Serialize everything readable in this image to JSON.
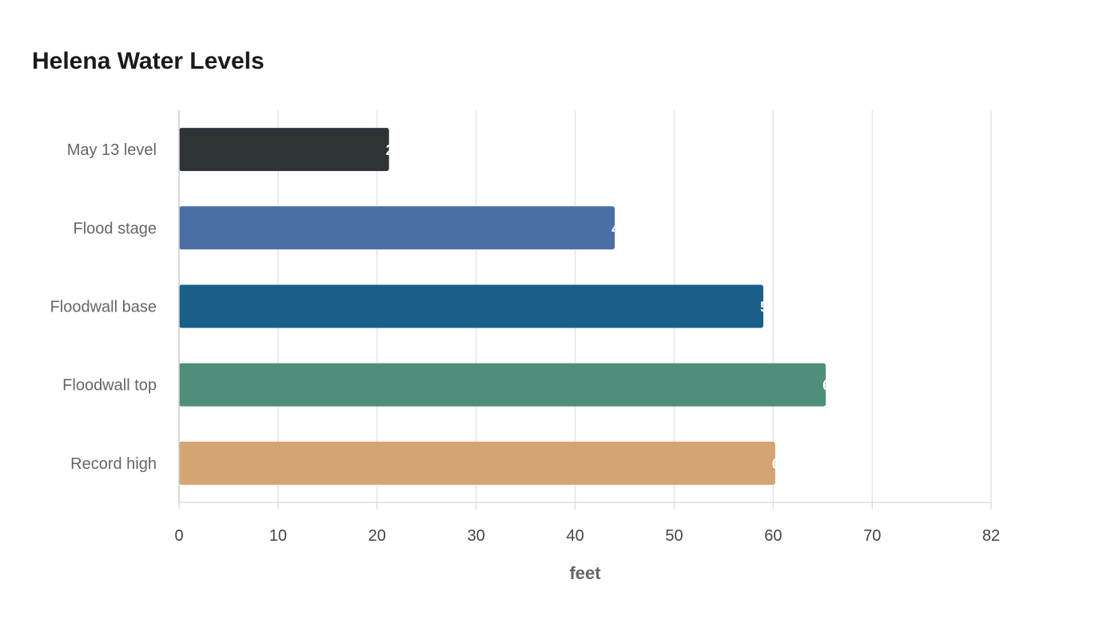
{
  "chart_data": {
    "type": "bar",
    "orientation": "horizontal",
    "title": "Helena Water Levels",
    "xlabel": "feet",
    "categories": [
      "May 13 level",
      "Flood stage",
      "Floodwall base",
      "Floodwall top",
      "Record high"
    ],
    "values": [
      21.2,
      44,
      59,
      65.3,
      60.2
    ],
    "colors": [
      "#2e3336",
      "#4a6fa5",
      "#196089",
      "#4e8e7b",
      "#d3a573"
    ],
    "xlim": [
      0,
      82
    ],
    "ticks": [
      0,
      10,
      20,
      30,
      40,
      50,
      60,
      70,
      82
    ],
    "grid": true,
    "legend": "none"
  }
}
